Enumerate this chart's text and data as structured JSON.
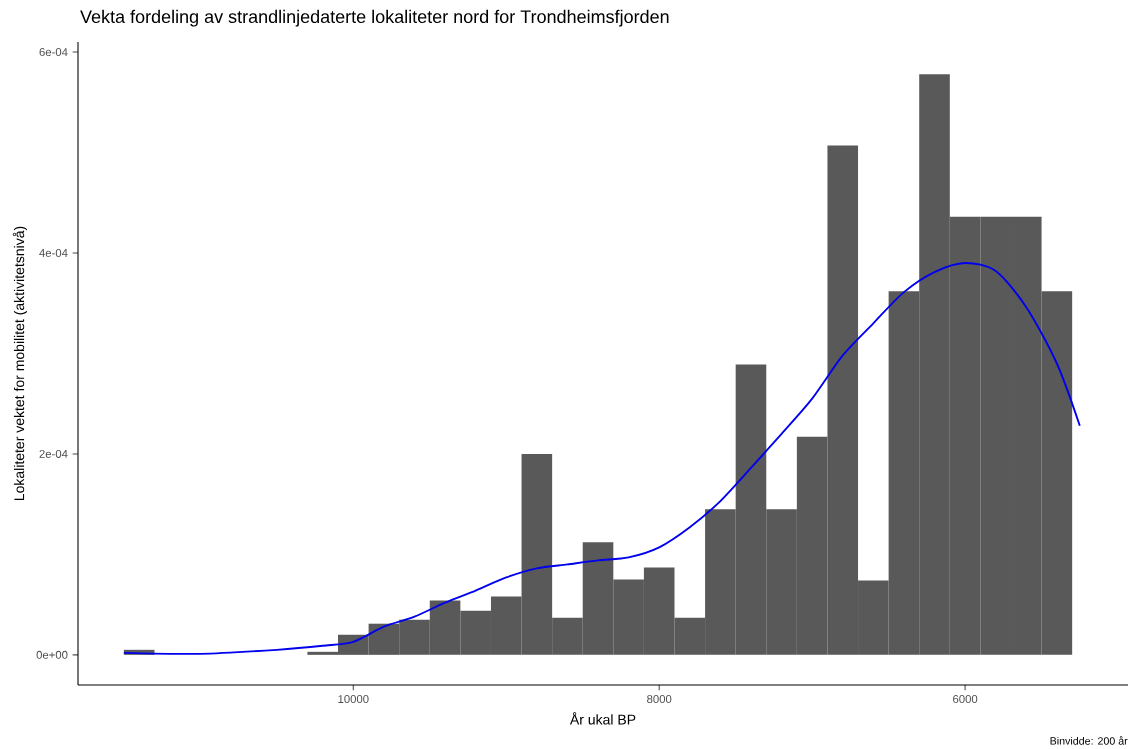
{
  "chart_data": {
    "type": "histogram",
    "title": "Vekta fordeling av strandlinjedaterte lokaliteter nord for Trondheimsfjorden",
    "xlabel": "År ukal BP",
    "ylabel": "Lokaliteter vektet for mobilitet (aktivitetsnivå)",
    "annotations": [
      "Binvidde: 200 år"
    ],
    "xlim": [
      11800,
      4935
    ],
    "ylim": [
      -3e-05,
      0.00061
    ],
    "xticks": [
      10000,
      8000,
      6000
    ],
    "yticks": [
      {
        "value": 0,
        "label": "0e+00"
      },
      {
        "value": 0.0002,
        "label": "2e-04"
      },
      {
        "value": 0.0004,
        "label": "4e-04"
      },
      {
        "value": 0.0006,
        "label": "6e-04"
      }
    ],
    "grid": false,
    "series": [
      {
        "color": "#595959",
        "bins": [
          11500,
          11300,
          11100,
          10900,
          10700,
          10500,
          10300,
          10100,
          9900,
          9700,
          9500,
          9300,
          9100,
          8900,
          8700,
          8500,
          8300,
          8100,
          7900,
          7700,
          7500,
          7300,
          7100,
          6900,
          6700,
          6500,
          6300,
          6100,
          5900,
          5700,
          5500,
          5300
        ],
        "values": [
          5e-06,
          0,
          0,
          0,
          0,
          0,
          3e-06,
          2e-05,
          3.1e-05,
          3.5e-05,
          5.4e-05,
          4.4e-05,
          5.8e-05,
          0.0002,
          3.7e-05,
          0.000112,
          7.5e-05,
          8.7e-05,
          3.7e-05,
          0.000145,
          0.000289,
          0.000145,
          0.000217,
          0.000507,
          7.4e-05,
          0.000362,
          0.000578,
          0.000436,
          0.000436,
          0.000436,
          0.000362
        ]
      },
      {
        "type": "line",
        "color": "#0000ee",
        "x": [
          11500,
          11000,
          10500,
          10200,
          10000,
          9800,
          9600,
          9400,
          9200,
          9000,
          8800,
          8600,
          8400,
          8200,
          8000,
          7800,
          7600,
          7400,
          7200,
          7000,
          6800,
          6600,
          6400,
          6200,
          6000,
          5800,
          5600,
          5400,
          5250
        ],
        "values": [
          2e-06,
          1e-06,
          5e-06,
          9e-06,
          1.3e-05,
          2.8e-05,
          3.8e-05,
          5.2e-05,
          6.4e-05,
          7.7e-05,
          8.6e-05,
          9e-05,
          9.4e-05,
          9.7e-05,
          0.000107,
          0.000127,
          0.000153,
          0.000186,
          0.00022,
          0.000255,
          0.000298,
          0.00033,
          0.000361,
          0.000381,
          0.00039,
          0.000382,
          0.000346,
          0.00029,
          0.000228
        ]
      }
    ]
  }
}
